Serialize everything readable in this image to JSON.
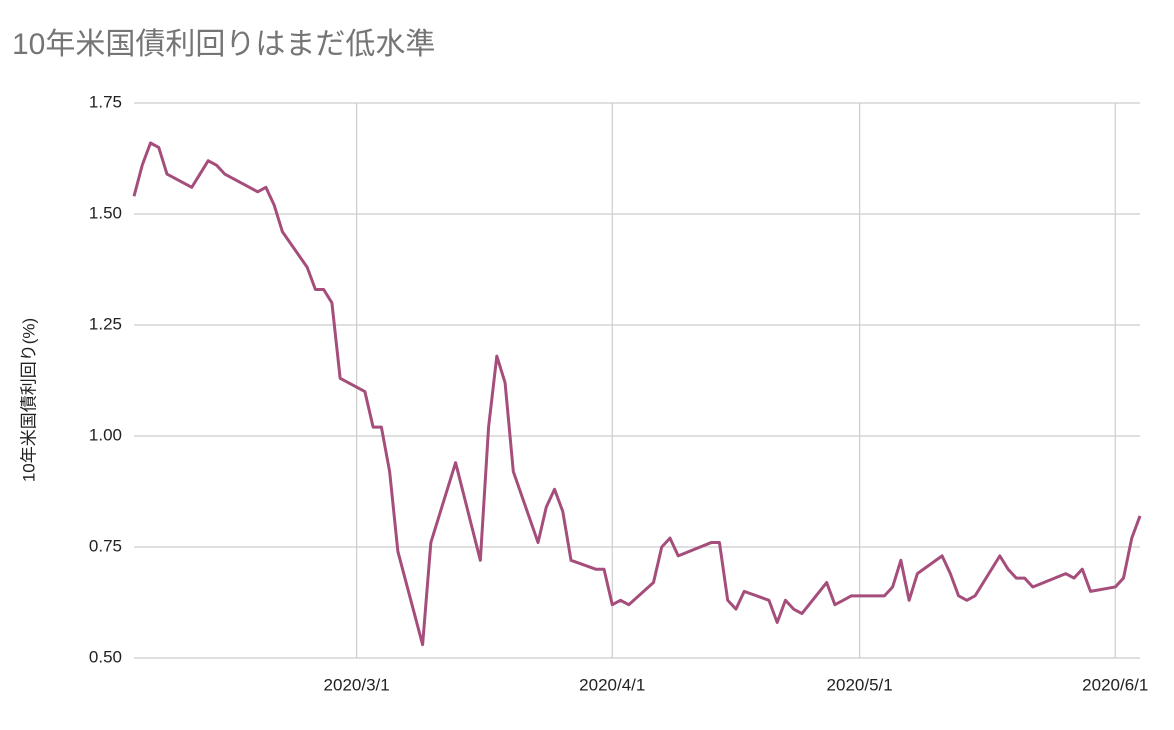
{
  "chart_data": {
    "type": "line",
    "title": "10年米国債利回りはまだ低水準",
    "y_label": "10年米国債利回り(%)",
    "x": [
      "2020/2/3",
      "2020/2/4",
      "2020/2/5",
      "2020/2/6",
      "2020/2/7",
      "2020/2/10",
      "2020/2/11",
      "2020/2/12",
      "2020/2/13",
      "2020/2/14",
      "2020/2/18",
      "2020/2/19",
      "2020/2/20",
      "2020/2/21",
      "2020/2/24",
      "2020/2/25",
      "2020/2/26",
      "2020/2/27",
      "2020/2/28",
      "2020/3/2",
      "2020/3/3",
      "2020/3/4",
      "2020/3/5",
      "2020/3/6",
      "2020/3/9",
      "2020/3/10",
      "2020/3/11",
      "2020/3/12",
      "2020/3/13",
      "2020/3/16",
      "2020/3/17",
      "2020/3/18",
      "2020/3/19",
      "2020/3/20",
      "2020/3/23",
      "2020/3/24",
      "2020/3/25",
      "2020/3/26",
      "2020/3/27",
      "2020/3/30",
      "2020/3/31",
      "2020/4/1",
      "2020/4/2",
      "2020/4/3",
      "2020/4/6",
      "2020/4/7",
      "2020/4/8",
      "2020/4/9",
      "2020/4/13",
      "2020/4/14",
      "2020/4/15",
      "2020/4/16",
      "2020/4/17",
      "2020/4/20",
      "2020/4/21",
      "2020/4/22",
      "2020/4/23",
      "2020/4/24",
      "2020/4/27",
      "2020/4/28",
      "2020/4/29",
      "2020/4/30",
      "2020/5/1",
      "2020/5/4",
      "2020/5/5",
      "2020/5/6",
      "2020/5/7",
      "2020/5/8",
      "2020/5/11",
      "2020/5/12",
      "2020/5/13",
      "2020/5/14",
      "2020/5/15",
      "2020/5/18",
      "2020/5/19",
      "2020/5/20",
      "2020/5/21",
      "2020/5/22",
      "2020/5/26",
      "2020/5/27",
      "2020/5/28",
      "2020/5/29",
      "2020/6/1",
      "2020/6/2",
      "2020/6/3",
      "2020/6/4"
    ],
    "series": [
      {
        "name": "10年米国債利回り",
        "color": "#a54e7b",
        "values": [
          1.54,
          1.61,
          1.66,
          1.65,
          1.59,
          1.56,
          1.59,
          1.62,
          1.61,
          1.59,
          1.55,
          1.56,
          1.52,
          1.46,
          1.38,
          1.33,
          1.33,
          1.3,
          1.13,
          1.1,
          1.02,
          1.02,
          0.92,
          0.74,
          0.53,
          0.76,
          0.82,
          0.88,
          0.94,
          0.72,
          1.02,
          1.18,
          1.12,
          0.92,
          0.76,
          0.84,
          0.88,
          0.83,
          0.72,
          0.7,
          0.7,
          0.62,
          0.63,
          0.62,
          0.67,
          0.75,
          0.77,
          0.73,
          0.76,
          0.76,
          0.63,
          0.61,
          0.65,
          0.63,
          0.58,
          0.63,
          0.61,
          0.6,
          0.67,
          0.62,
          0.63,
          0.64,
          0.64,
          0.64,
          0.66,
          0.72,
          0.63,
          0.69,
          0.73,
          0.69,
          0.64,
          0.63,
          0.64,
          0.73,
          0.7,
          0.68,
          0.68,
          0.66,
          0.69,
          0.68,
          0.7,
          0.65,
          0.66,
          0.68,
          0.77,
          0.82
        ]
      }
    ],
    "xlim": [
      "2020/2/3",
      "2020/6/4"
    ],
    "xticks": [
      "2020/3/1",
      "2020/4/1",
      "2020/5/1",
      "2020/6/1"
    ],
    "ylim": [
      0.5,
      1.75
    ],
    "yticks": [
      {
        "value": 0.5,
        "label": "0.50"
      },
      0.75,
      {
        "value": 1,
        "label": "1.00"
      },
      1.25,
      {
        "value": 1.5,
        "label": "1.50"
      },
      1.75
    ],
    "grid": true
  }
}
